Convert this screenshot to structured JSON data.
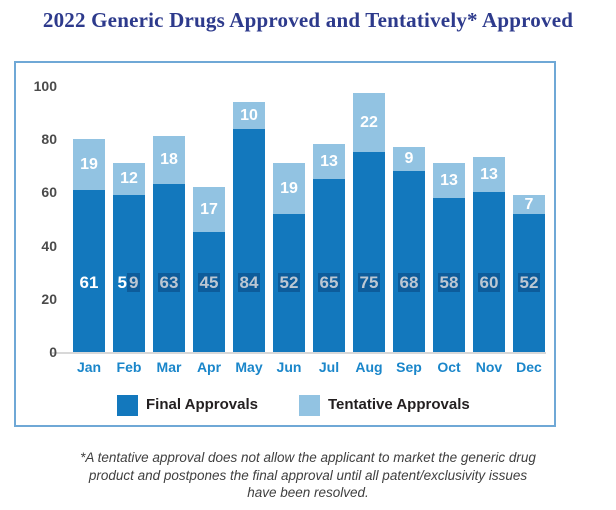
{
  "title": "2022 Generic Drugs Approved and Tentatively* Approved",
  "colors": {
    "title_text": "#2d3a8c",
    "box_border": "#6fa8d6",
    "final_bar": "#1378bd",
    "tentative_bar": "#92c3e2",
    "axis_label": "#4b4b4b",
    "month_label": "#1a86ca",
    "bar_label_text": "#ffffff",
    "selection_bg": "#0d5c9b",
    "selection_text": "#bcc7d3",
    "legend_text": "#231f20",
    "baseline_line": "#d8d8d8",
    "footnote_text": "#3f3f3f"
  },
  "chart_data": {
    "type": "bar",
    "stacked": true,
    "title": "2022 Generic Drugs Approved and Tentatively* Approved",
    "categories": [
      "Jan",
      "Feb",
      "Mar",
      "Apr",
      "May",
      "Jun",
      "Jul",
      "Aug",
      "Sep",
      "Oct",
      "Nov",
      "Dec"
    ],
    "series": [
      {
        "name": "Final Approvals",
        "values": [
          61,
          59,
          63,
          45,
          84,
          52,
          65,
          75,
          68,
          58,
          60,
          52
        ]
      },
      {
        "name": "Tentative Approvals",
        "values": [
          19,
          12,
          18,
          17,
          10,
          19,
          13,
          22,
          9,
          13,
          13,
          7
        ]
      }
    ],
    "totals": [
      80,
      71,
      81,
      62,
      94,
      71,
      78,
      97,
      77,
      71,
      73,
      59
    ],
    "ylim": [
      0,
      100
    ],
    "yticks": [
      0,
      20,
      40,
      60,
      80,
      100
    ],
    "grid": false,
    "legend_position": "bottom-inside"
  },
  "legend": {
    "final_label": "Final Approvals",
    "tentative_label": "Tentative Approvals"
  },
  "text_selection_highlight": {
    "description_of_visible_artifact": "final-approval numbers appear text-selected from the second digit of Feb through Dec",
    "start_month_index": 1,
    "start_char_index": 1
  },
  "footnote_lines": [
    "*A tentative approval does not allow the applicant to market the generic drug",
    "product and postpones the final approval until all patent/exclusivity issues",
    "have been resolved."
  ]
}
